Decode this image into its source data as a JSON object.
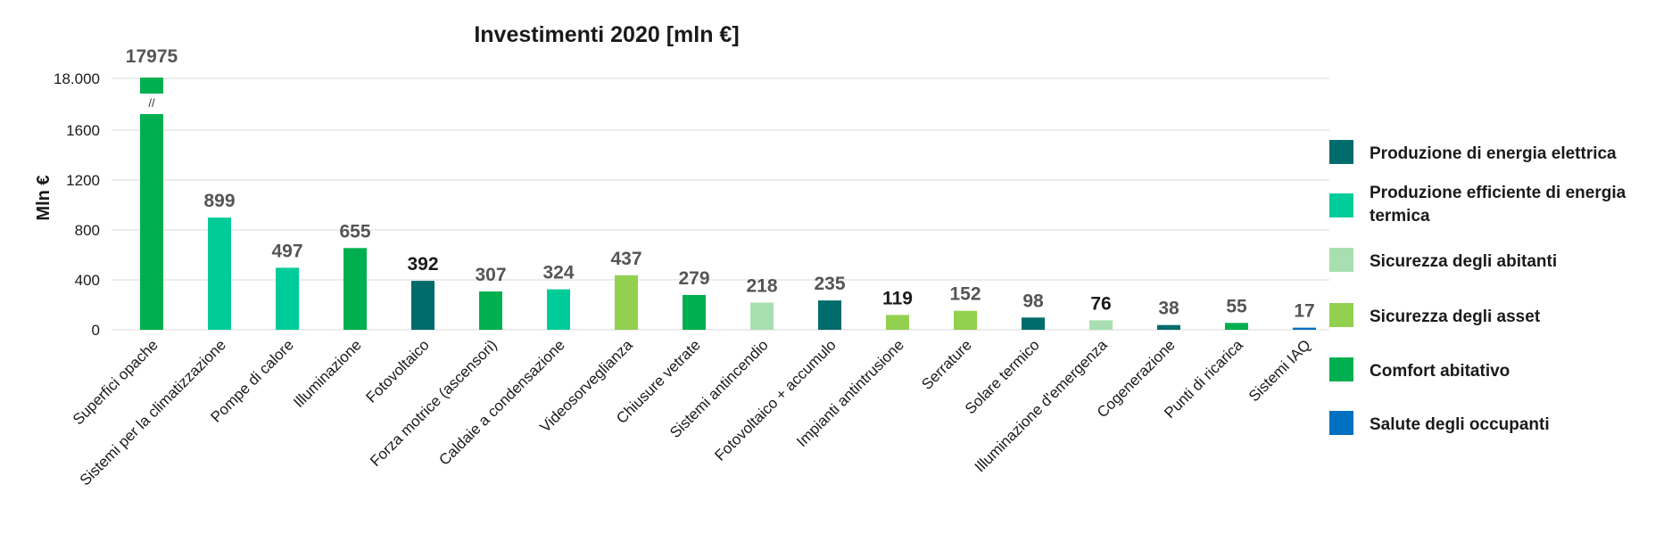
{
  "chart_data": {
    "type": "bar",
    "title": "Investimenti 2020 [mln €]",
    "ylabel": "Mln €",
    "xlabel": "",
    "axis_break": {
      "lower_max": 1800,
      "upper_tick_label": "18.000",
      "break_symbol": "//"
    },
    "yticks": [
      {
        "value": 0,
        "label": "0"
      },
      {
        "value": 400,
        "label": "400"
      },
      {
        "value": 800,
        "label": "800"
      },
      {
        "value": 1200,
        "label": "1200"
      },
      {
        "value": 1600,
        "label": "1600"
      }
    ],
    "ylim": [
      0,
      18000
    ],
    "grid": true,
    "legend_position": "right",
    "categories_legend": [
      {
        "key": "elettrica",
        "label": "Produzione  di energia elettrica",
        "color": "#006b6b"
      },
      {
        "key": "termica",
        "label_lines": [
          "Produzione  efficiente di energia",
          "termica"
        ],
        "color": "#00cc99"
      },
      {
        "key": "abitanti",
        "label": "Sicurezza degli abitanti",
        "color": "#a8dfb0"
      },
      {
        "key": "asset",
        "label": "Sicurezza degli asset",
        "color": "#92d050"
      },
      {
        "key": "comfort",
        "label": "Comfort abitativo",
        "color": "#00b050"
      },
      {
        "key": "salute",
        "label": "Salute degli occupanti",
        "color": "#0070c0"
      }
    ],
    "bars": [
      {
        "category": "Superfici opache",
        "value": 17975,
        "label": "17975",
        "group": "comfort",
        "dark": false
      },
      {
        "category": "Sistemi per la climatizzazione",
        "value": 899,
        "label": "899",
        "group": "termica",
        "dark": false
      },
      {
        "category": "Pompe di calore",
        "value": 497,
        "label": "497",
        "group": "termica",
        "dark": false
      },
      {
        "category": "Illuminazione",
        "value": 655,
        "label": "655",
        "group": "comfort",
        "dark": false
      },
      {
        "category": "Fotovoltaico",
        "value": 392,
        "label": "392",
        "group": "elettrica",
        "dark": true
      },
      {
        "category": "Forza motrice (ascensori)",
        "value": 307,
        "label": "307",
        "group": "comfort",
        "dark": false
      },
      {
        "category": "Caldaie a condensazione",
        "value": 324,
        "label": "324",
        "group": "termica",
        "dark": false
      },
      {
        "category": "Videosorveglianza",
        "value": 437,
        "label": "437",
        "group": "asset",
        "dark": false
      },
      {
        "category": "Chiusure vetrate",
        "value": 279,
        "label": "279",
        "group": "comfort",
        "dark": false
      },
      {
        "category": "Sistemi antincendio",
        "value": 218,
        "label": "218",
        "group": "abitanti",
        "dark": false
      },
      {
        "category": "Fotovoltaico + accumulo",
        "value": 235,
        "label": "235",
        "group": "elettrica",
        "dark": false
      },
      {
        "category": "Impianti antintrusione",
        "value": 119,
        "label": "119",
        "group": "asset",
        "dark": true
      },
      {
        "category": "Serrature",
        "value": 152,
        "label": "152",
        "group": "asset",
        "dark": false
      },
      {
        "category": "Solare termico",
        "value": 98,
        "label": "98",
        "group": "elettrica",
        "dark": false
      },
      {
        "category": "Illuminazione d'emergenza",
        "value": 76,
        "label": "76",
        "group": "abitanti",
        "dark": true
      },
      {
        "category": "Cogenerazione",
        "value": 38,
        "label": "38",
        "group": "elettrica",
        "dark": false
      },
      {
        "category": "Punti di ricarica",
        "value": 55,
        "label": "55",
        "group": "comfort",
        "dark": false
      },
      {
        "category": "Sistemi IAQ",
        "value": 17,
        "label": "17",
        "group": "salute",
        "dark": false
      }
    ]
  }
}
